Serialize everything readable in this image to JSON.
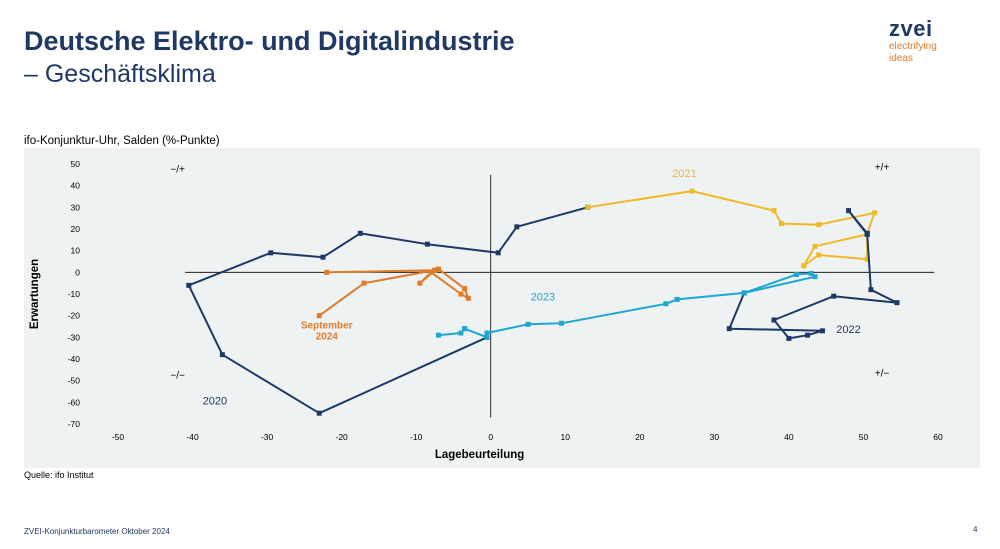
{
  "header": {
    "title_line1": "Deutsche Elektro- und Digitalindustrie",
    "title_line2": "– Geschäftsklima"
  },
  "logo": {
    "word": "zvei",
    "tagline_line1": "electrifying",
    "tagline_line2": "ideas"
  },
  "subtitle": "ifo-Konjunktur-Uhr,  Salden (%-Punkte)",
  "source": "Quelle: ifo Institut",
  "footer": "ZVEI-Konjunkturbarometer Oktober 2024",
  "page_number": "4",
  "colors": {
    "s2020": "#1f3864",
    "s2021": "#f0b929",
    "s2022": "#1f3864",
    "s2023": "#1fa7d0",
    "s2024": "#e07b28"
  },
  "chart_data": {
    "type": "line",
    "xlabel": "Lagebeurteilung",
    "ylabel": "Erwartungen",
    "xlim": [
      -50,
      60
    ],
    "ylim": [
      -70,
      50
    ],
    "xticks": [
      -50,
      -40,
      -30,
      -20,
      -10,
      0,
      10,
      20,
      30,
      40,
      50,
      60
    ],
    "yticks": [
      50,
      40,
      30,
      20,
      10,
      0,
      -10,
      -20,
      -30,
      -40,
      -50,
      -60,
      -70
    ],
    "quadrants": [
      {
        "text": "−/+",
        "x": -42,
        "y": 46
      },
      {
        "text": "+/+",
        "x": 52.5,
        "y": 47
      },
      {
        "text": "−/−",
        "x": -42,
        "y": -49
      },
      {
        "text": "+/−",
        "x": 52.5,
        "y": -48
      }
    ],
    "series": [
      {
        "name": "2020",
        "color": "#1f3864",
        "label_pos": {
          "x": -37,
          "y": -61
        },
        "x": [
          -0.5,
          -23,
          -36,
          -40.5,
          -29.5,
          -22.5,
          -17.5,
          -8.5,
          1,
          3.5,
          13
        ],
        "y": [
          -30,
          -65,
          -38,
          -6,
          9,
          7,
          18,
          13,
          9,
          21,
          30
        ]
      },
      {
        "name": "2021",
        "color": "#f0b929",
        "label_pos": {
          "x": 26,
          "y": 44
        },
        "x": [
          13,
          27,
          38,
          39,
          44,
          51.5,
          50.5,
          50.5,
          44,
          42,
          43.5,
          50.5
        ],
        "y": [
          30,
          37.5,
          28.5,
          22.5,
          22,
          27.5,
          18,
          6,
          8,
          3,
          12,
          17.5
        ]
      },
      {
        "name": "2022",
        "color": "#1f3864",
        "label_pos": {
          "x": 48,
          "y": -28
        },
        "x": [
          50.5,
          48,
          50.5,
          51,
          54.5,
          46,
          38,
          40,
          42.5,
          44.5,
          32,
          34
        ],
        "y": [
          18,
          28.5,
          17.5,
          -8,
          -14,
          -11,
          -22,
          -30.5,
          -29,
          -27,
          -26,
          -9.5
        ]
      },
      {
        "name": "2023",
        "color": "#1fa7d0",
        "label_pos": {
          "x": 7,
          "y": -13
        },
        "x": [
          34,
          41,
          43,
          43.5,
          34,
          25,
          23.5,
          9.5,
          5,
          -0.5,
          -0.5,
          -3.5,
          -3.5,
          -4,
          -7
        ],
        "y": [
          -9.5,
          -1,
          -0.5,
          -2,
          -9.5,
          -12.5,
          -14.5,
          -23.5,
          -24,
          -28,
          -30,
          -26,
          -26,
          -28,
          -29
        ]
      },
      {
        "name": "September\n2024",
        "color": "#e07b28",
        "label_pos": {
          "x": -22,
          "y": -26
        },
        "x": [
          -22,
          -7.5,
          -7,
          -3.5,
          -3,
          -4,
          -8,
          -9.5,
          -7.5,
          -17,
          -23
        ],
        "y": [
          0,
          1,
          1.5,
          -7.5,
          -12,
          -10,
          0,
          -5,
          1,
          -5,
          -20
        ]
      }
    ]
  }
}
